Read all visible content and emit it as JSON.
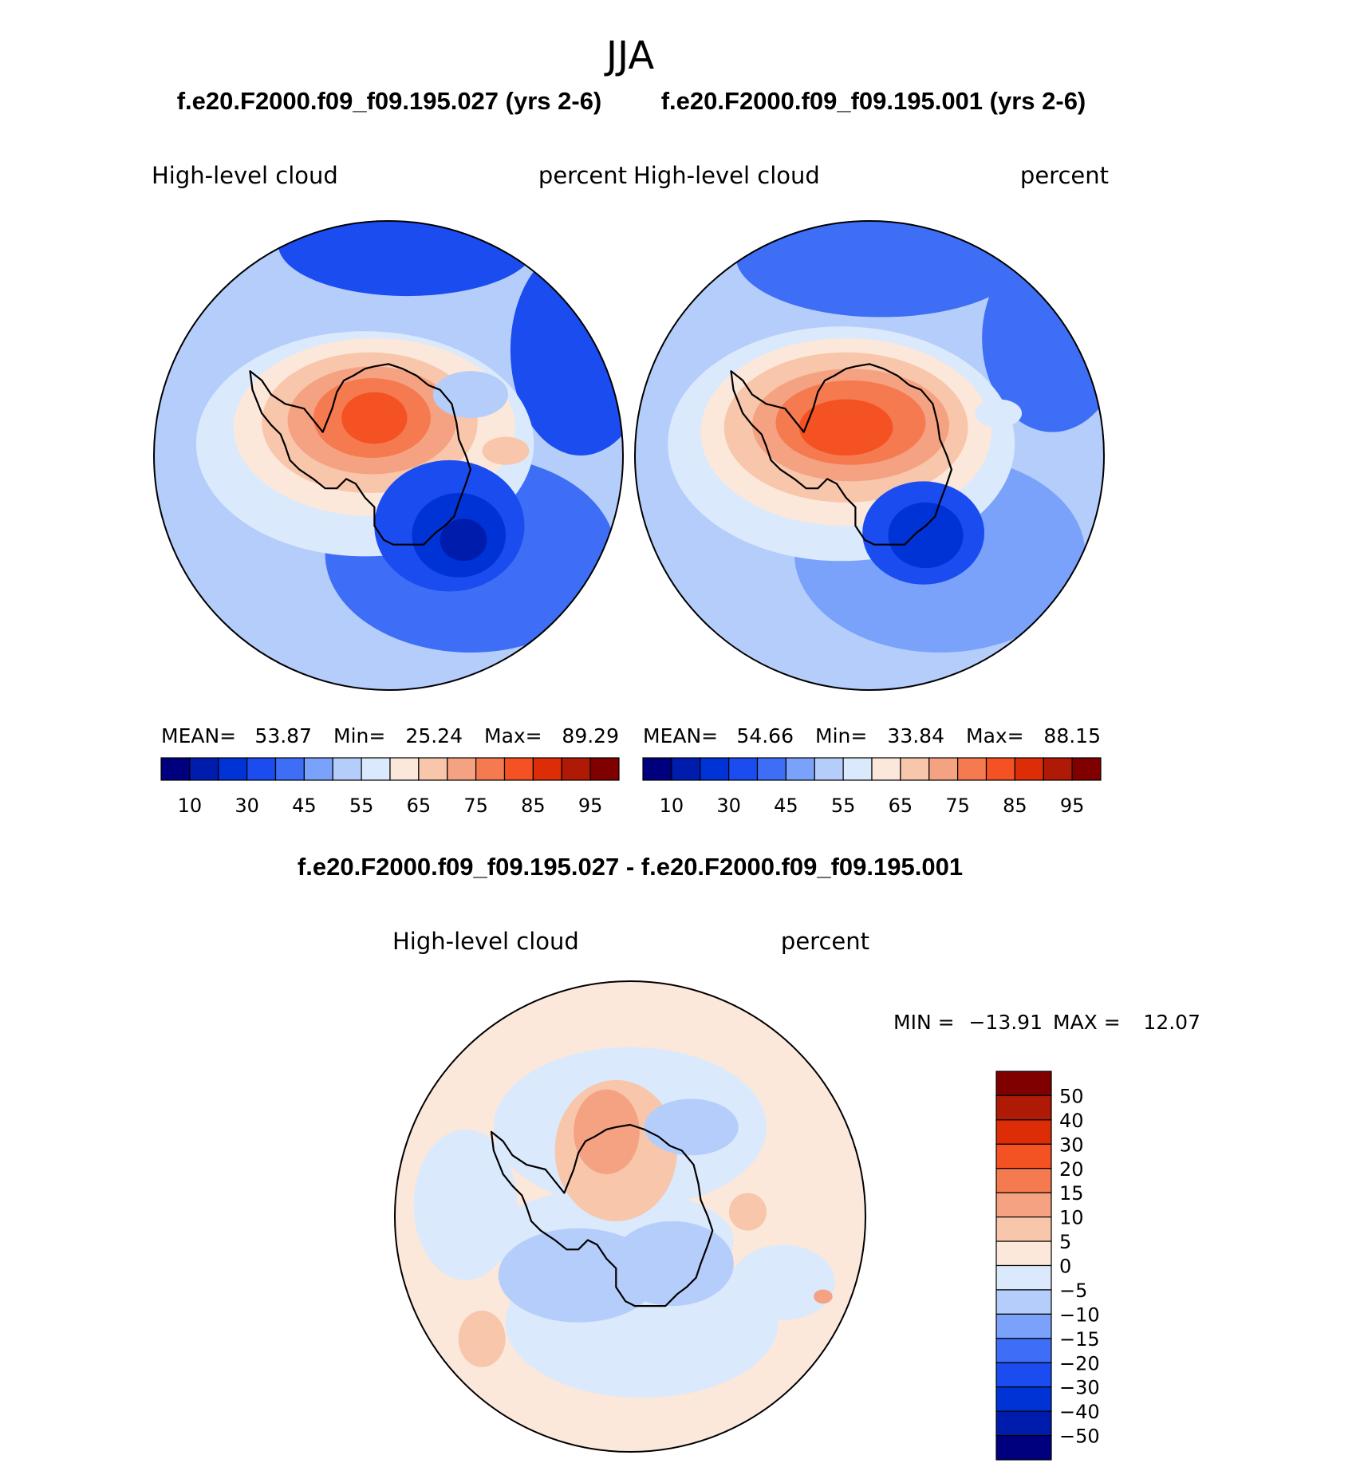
{
  "page": {
    "title": "JJA",
    "case_a_title": "f.e20.F2000.f09_f09.195.027 (yrs 2-6)",
    "case_b_title": "f.e20.F2000.f09_f09.195.001 (yrs 2-6)",
    "diff_title": "f.e20.F2000.f09_f09.195.027 - f.e20.F2000.f09_f09.195.001"
  },
  "colors": {
    "abs_palette": [
      "#00007f",
      "#001cad",
      "#0033d6",
      "#1a4cf0",
      "#3d6ef5",
      "#7aa2fa",
      "#b5cdfb",
      "#dae9fb",
      "#fce8db",
      "#f8c6ab",
      "#f5a283",
      "#f57a50",
      "#f55223",
      "#dc2d06",
      "#ae1a05",
      "#800000"
    ],
    "diff_palette": [
      "#00007f",
      "#001cad",
      "#0033d6",
      "#1a4cf0",
      "#3d6ef5",
      "#7aa2fa",
      "#b5cdfb",
      "#dae9fb",
      "#fce8db",
      "#f8c6ab",
      "#f5a283",
      "#f57a50",
      "#f55223",
      "#dc2d06",
      "#ae1a05",
      "#800000"
    ],
    "coast": "#000000"
  },
  "chart_data": [
    {
      "type": "heatmap",
      "projection": "south-polar-stereographic",
      "variable_label": "High-level cloud",
      "units_label": "percent",
      "stats": {
        "mean_label": "MEAN=",
        "mean": "53.87",
        "min_label": "Min=",
        "min": "25.24",
        "max_label": "Max=",
        "max": "89.29"
      },
      "colorbar": {
        "orientation": "horizontal",
        "tick_labels": [
          "10",
          "30",
          "45",
          "55",
          "65",
          "75",
          "85",
          "95"
        ]
      }
    },
    {
      "type": "heatmap",
      "projection": "south-polar-stereographic",
      "variable_label": "High-level cloud",
      "units_label": "percent",
      "stats": {
        "mean_label": "MEAN=",
        "mean": "54.66",
        "min_label": "Min=",
        "min": "33.84",
        "max_label": "Max=",
        "max": "88.15"
      },
      "colorbar": {
        "orientation": "horizontal",
        "tick_labels": [
          "10",
          "30",
          "45",
          "55",
          "65",
          "75",
          "85",
          "95"
        ]
      }
    },
    {
      "type": "heatmap",
      "projection": "south-polar-stereographic",
      "variable_label": "High-level cloud",
      "units_label": "percent",
      "stats": {
        "min_label": "MIN =",
        "min": "−13.91",
        "max_label": "MAX =",
        "max": "12.07"
      },
      "colorbar": {
        "orientation": "vertical",
        "tick_labels": [
          "50",
          "40",
          "30",
          "20",
          "15",
          "10",
          "5",
          "0",
          "−5",
          "−10",
          "−15",
          "−20",
          "−30",
          "−40",
          "−50"
        ]
      }
    }
  ]
}
